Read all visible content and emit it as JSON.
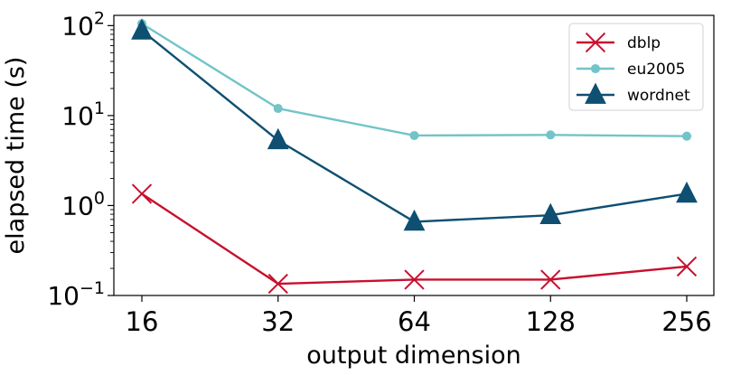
{
  "chart_data": {
    "type": "line",
    "xlabel": "output dimension",
    "ylabel": "elapsed time (s)",
    "x": [
      16,
      32,
      64,
      128,
      256
    ],
    "x_tick_labels": [
      "16",
      "32",
      "64",
      "128",
      "256"
    ],
    "x_scale": "log2",
    "y_scale": "log10",
    "ylim": [
      0.1,
      130
    ],
    "y_ticks": [
      {
        "base": "10",
        "exp": "2",
        "value": 100
      },
      {
        "base": "10",
        "exp": "1",
        "value": 10
      },
      {
        "base": "10",
        "exp": "0",
        "value": 1
      },
      {
        "base": "10",
        "exp": "−1",
        "value": 0.1
      }
    ],
    "grid": false,
    "legend_position": "top-right",
    "series": [
      {
        "name": "dblp",
        "color": "#c8102e",
        "marker": "x",
        "values": [
          1.35,
          0.135,
          0.15,
          0.15,
          0.21
        ]
      },
      {
        "name": "eu2005",
        "color": "#72c4c8",
        "marker": "circle",
        "values": [
          105,
          12,
          6.0,
          6.1,
          5.9
        ]
      },
      {
        "name": "wordnet",
        "color": "#0e4f72",
        "marker": "triangle",
        "values": [
          88,
          5.3,
          0.66,
          0.78,
          1.35
        ]
      }
    ]
  }
}
